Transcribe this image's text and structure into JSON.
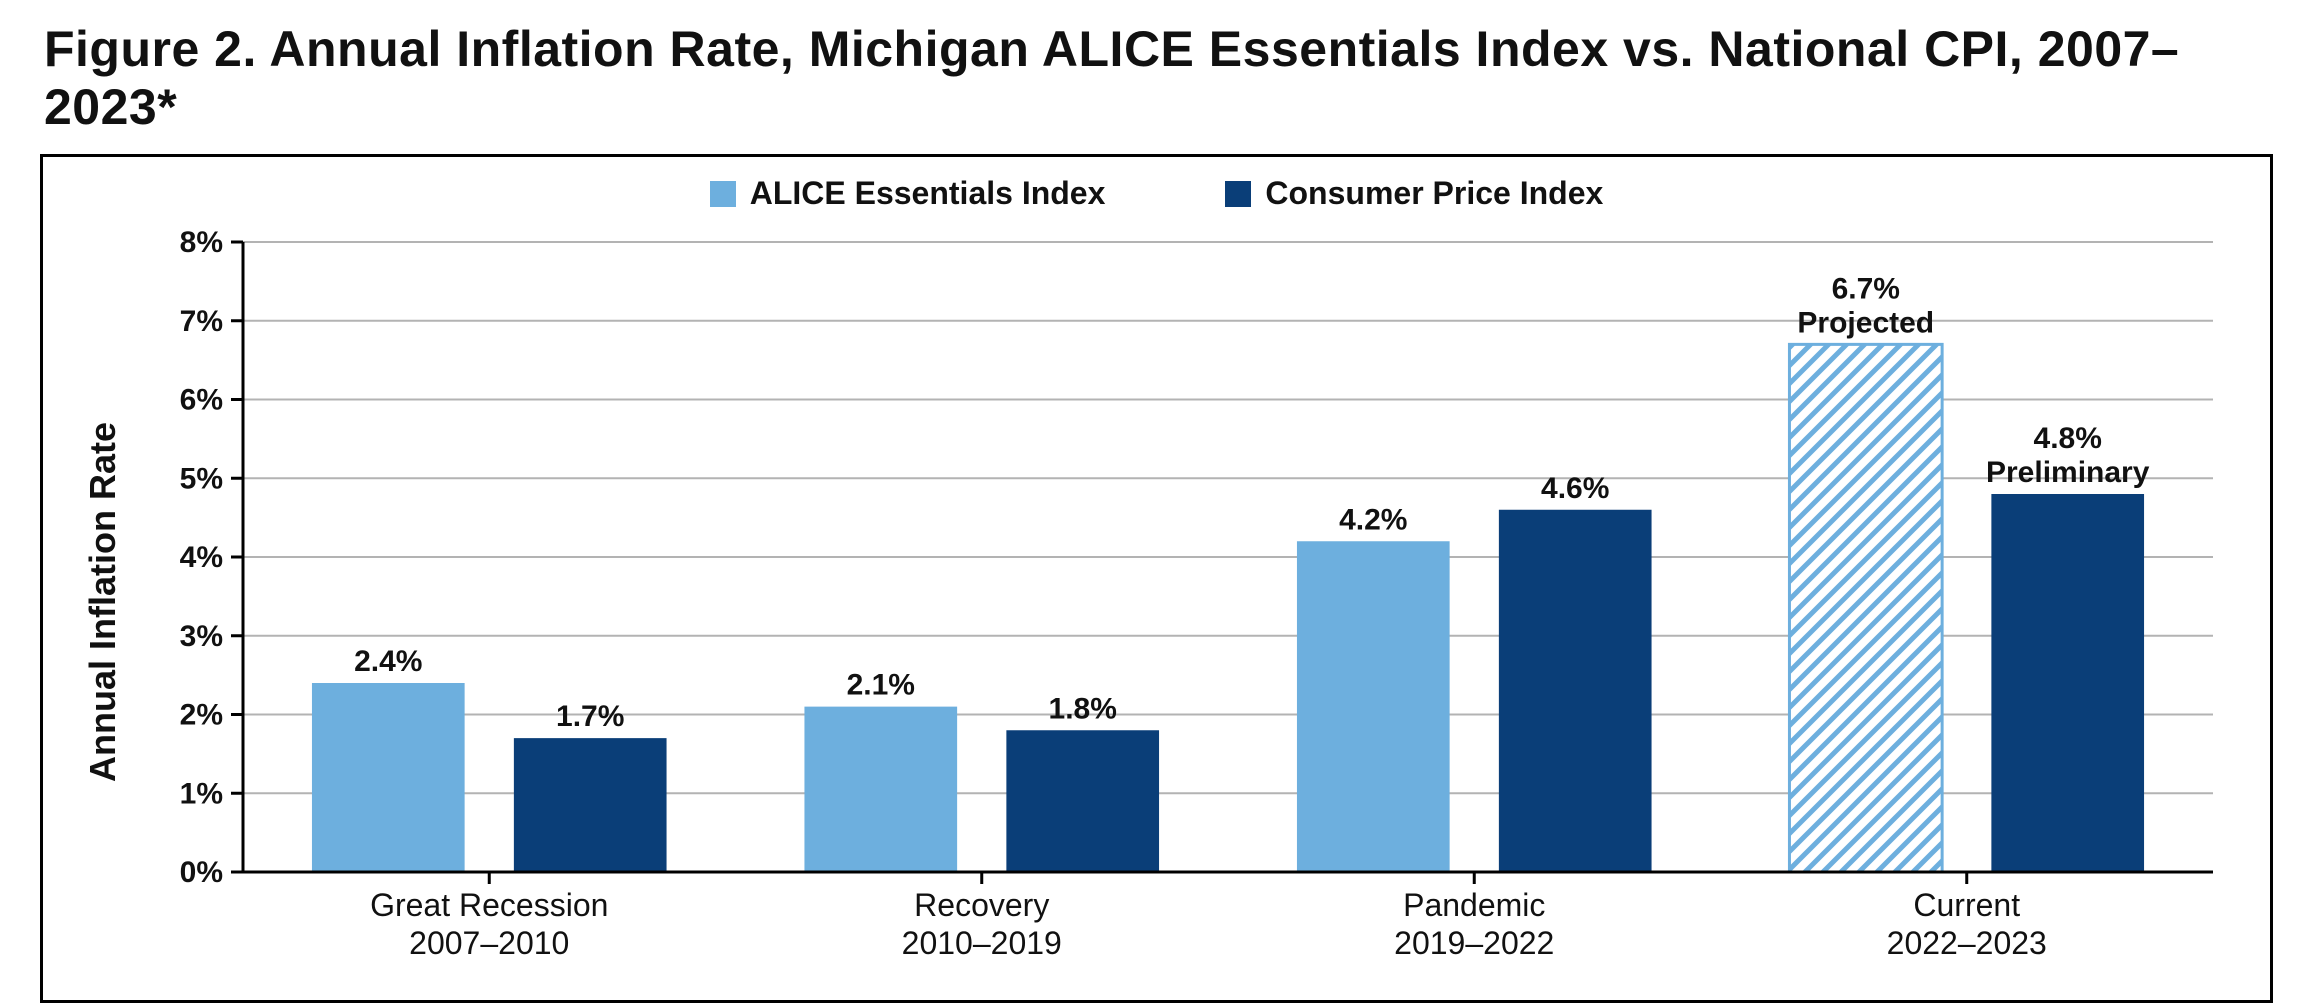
{
  "title": "Figure 2. Annual Inflation Rate, Michigan ALICE Essentials Index vs. National CPI, 2007–2023*",
  "ylabel": "Annual Inflation Rate",
  "legend": {
    "series_a": "ALICE Essentials Index",
    "series_b": "Consumer Price Index"
  },
  "colors": {
    "series_a": "#6dafde",
    "series_b": "#0a3e78",
    "hatch_bg": "#ffffff",
    "hatch_stroke": "#6dafde",
    "grid": "#b3b3b3",
    "axis": "#000000",
    "text": "#111111",
    "frame_border": "#000000",
    "background": "#ffffff"
  },
  "yaxis": {
    "min": 0,
    "max": 8,
    "tick_step": 1,
    "tick_suffix": "%"
  },
  "layout": {
    "title_fontsize": 50,
    "legend_fontsize": 32,
    "ylabel_fontsize": 36,
    "tick_fontsize": 30,
    "category_fontsize": 32,
    "value_fontsize": 30,
    "bar_width_ratio": 0.62,
    "bar_gap_ratio": 0.1,
    "aspect_width": 2313,
    "aspect_height": 988
  },
  "categories": [
    {
      "line1": "Great Recession",
      "line2": "2007–2010"
    },
    {
      "line1": "Recovery",
      "line2": "2010–2019"
    },
    {
      "line1": "Pandemic",
      "line2": "2019–2022"
    },
    {
      "line1": "Current",
      "line2": "2022–2023"
    }
  ],
  "series": {
    "a": [
      {
        "value": 2.4,
        "label": "2.4%",
        "note": null,
        "hatched": false
      },
      {
        "value": 2.1,
        "label": "2.1%",
        "note": null,
        "hatched": false
      },
      {
        "value": 4.2,
        "label": "4.2%",
        "note": null,
        "hatched": false
      },
      {
        "value": 6.7,
        "label": "6.7%",
        "note": "Projected",
        "hatched": true
      }
    ],
    "b": [
      {
        "value": 1.7,
        "label": "1.7%",
        "note": null
      },
      {
        "value": 1.8,
        "label": "1.8%",
        "note": null
      },
      {
        "value": 4.6,
        "label": "4.6%",
        "note": null
      },
      {
        "value": 4.8,
        "label": "4.8%",
        "note": "Preliminary"
      }
    ]
  }
}
